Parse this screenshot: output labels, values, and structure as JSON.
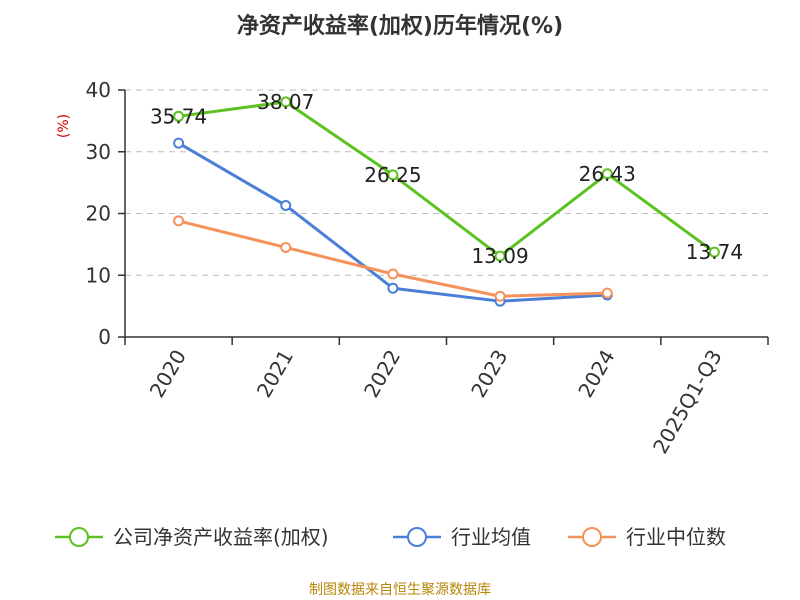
{
  "chart_data": {
    "type": "line",
    "title": "净资产收益率(加权)历年情况(%)",
    "ylabel": "(%)",
    "xlabel": "",
    "categories": [
      "2020",
      "2021",
      "2022",
      "2023",
      "2024",
      "2025Q1-Q3"
    ],
    "ylim": [
      0,
      40
    ],
    "yticks": [
      0,
      10,
      20,
      30,
      40
    ],
    "grid": true,
    "legend_position": "bottom",
    "series": [
      {
        "name": "公司净资产收益率(加权)",
        "color": "#5cc21f",
        "values": [
          35.74,
          38.07,
          26.25,
          13.09,
          26.43,
          13.74
        ],
        "labels": [
          "35.74",
          "38.07",
          "26.25",
          "13.09",
          "26.43",
          "13.74"
        ],
        "segments_break_after": [
          4
        ]
      },
      {
        "name": "行业均值",
        "color": "#4a7fd8",
        "values": [
          31.4,
          21.3,
          7.9,
          5.8,
          6.8,
          null
        ]
      },
      {
        "name": "行业中位数",
        "color": "#f5915a",
        "values": [
          18.8,
          14.5,
          10.2,
          6.6,
          7.1,
          null
        ]
      }
    ]
  },
  "source_text": "制图数据来自恒生聚源数据库"
}
